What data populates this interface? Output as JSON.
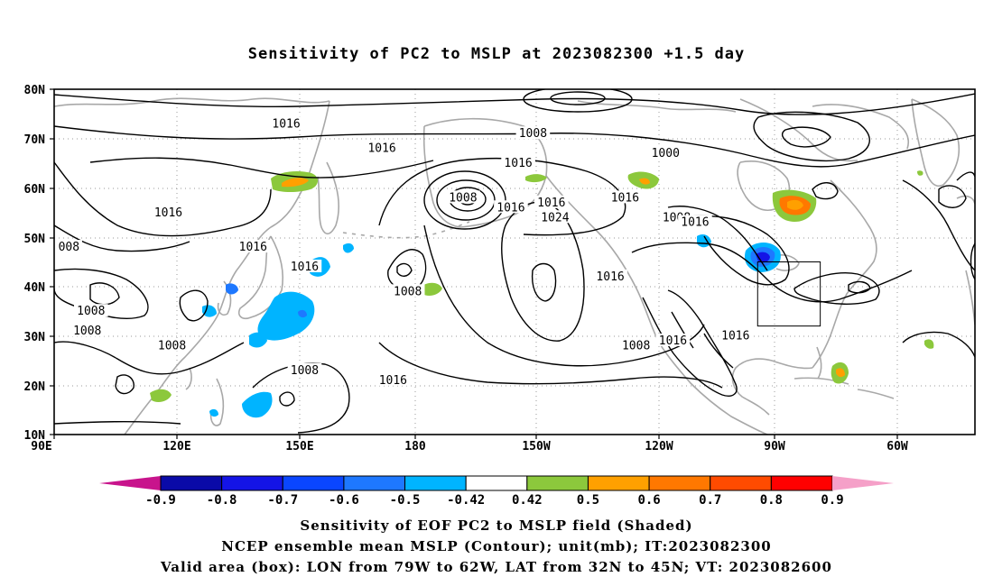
{
  "title": "Sensitivity of PC2 to MSLP at 2023082300 +1.5 day",
  "map": {
    "lat_labels": [
      "80N",
      "70N",
      "60N",
      "50N",
      "40N",
      "30N",
      "20N",
      "10N"
    ],
    "lon_labels": [
      "90E",
      "120E",
      "150E",
      "180",
      "150W",
      "120W",
      "90W",
      "60W"
    ],
    "contour_labels": [
      {
        "text": "1016",
        "lon": 153,
        "lat": 73
      },
      {
        "text": "1008",
        "lon": -140,
        "lat": 71
      },
      {
        "text": "1016",
        "lon": 121,
        "lat": 55
      },
      {
        "text": "1016",
        "lon": -144,
        "lat": 65
      },
      {
        "text": "1016",
        "lon": 144,
        "lat": 48
      },
      {
        "text": "1016",
        "lon": -146,
        "lat": 56
      },
      {
        "text": "1008",
        "lon": -159,
        "lat": 58
      },
      {
        "text": "1016",
        "lon": 179,
        "lat": 68
      },
      {
        "text": "1016",
        "lon": -135,
        "lat": 57
      },
      {
        "text": "1024",
        "lon": -134,
        "lat": 54
      },
      {
        "text": "1016",
        "lon": -115,
        "lat": 58
      },
      {
        "text": "1000",
        "lon": -104,
        "lat": 67
      },
      {
        "text": "1008",
        "lon": -101,
        "lat": 54
      },
      {
        "text": "1016",
        "lon": -96,
        "lat": 53
      },
      {
        "text": "008",
        "lon": 94,
        "lat": 48
      },
      {
        "text": "1016",
        "lon": 158,
        "lat": 44
      },
      {
        "text": "1008",
        "lon": 186,
        "lat": 39
      },
      {
        "text": "1016",
        "lon": -119,
        "lat": 42
      },
      {
        "text": "1008",
        "lon": 100,
        "lat": 35
      },
      {
        "text": "1008",
        "lon": 99,
        "lat": 31
      },
      {
        "text": "1008",
        "lon": 122,
        "lat": 28
      },
      {
        "text": "1008",
        "lon": 158,
        "lat": 23
      },
      {
        "text": "1008",
        "lon": -112,
        "lat": 28
      },
      {
        "text": "1016",
        "lon": -102,
        "lat": 29
      },
      {
        "text": "1016",
        "lon": -85,
        "lat": 30
      },
      {
        "text": "1016",
        "lon": 182,
        "lat": 21
      }
    ],
    "valid_box": {
      "lon_from": -79,
      "lon_to": -62,
      "lat_from": 32,
      "lat_to": 45
    }
  },
  "colorbar": {
    "labels": [
      "-0.9",
      "-0.8",
      "-0.7",
      "-0.6",
      "-0.5",
      "-0.42",
      "0.42",
      "0.5",
      "0.6",
      "0.7",
      "0.8",
      "0.9"
    ],
    "colors": [
      "#0a0aa8",
      "#1414e6",
      "#0a46ff",
      "#1e78ff",
      "#00b4ff",
      "#ffffff",
      "#8cc83c",
      "#ffa000",
      "#ff7800",
      "#ff4b00",
      "#ff0000"
    ],
    "low_end_color": "#c8148c",
    "high_end_color": "#f5a0c8"
  },
  "captions": {
    "line1": "Sensitivity of EOF PC2 to MSLP field (Shaded)",
    "line2": "NCEP ensemble mean MSLP (Contour); unit(mb); IT:2023082300",
    "line3": "Valid area (box): LON from 79W to 62W, LAT from 32N to 45N; VT: 2023082600"
  }
}
